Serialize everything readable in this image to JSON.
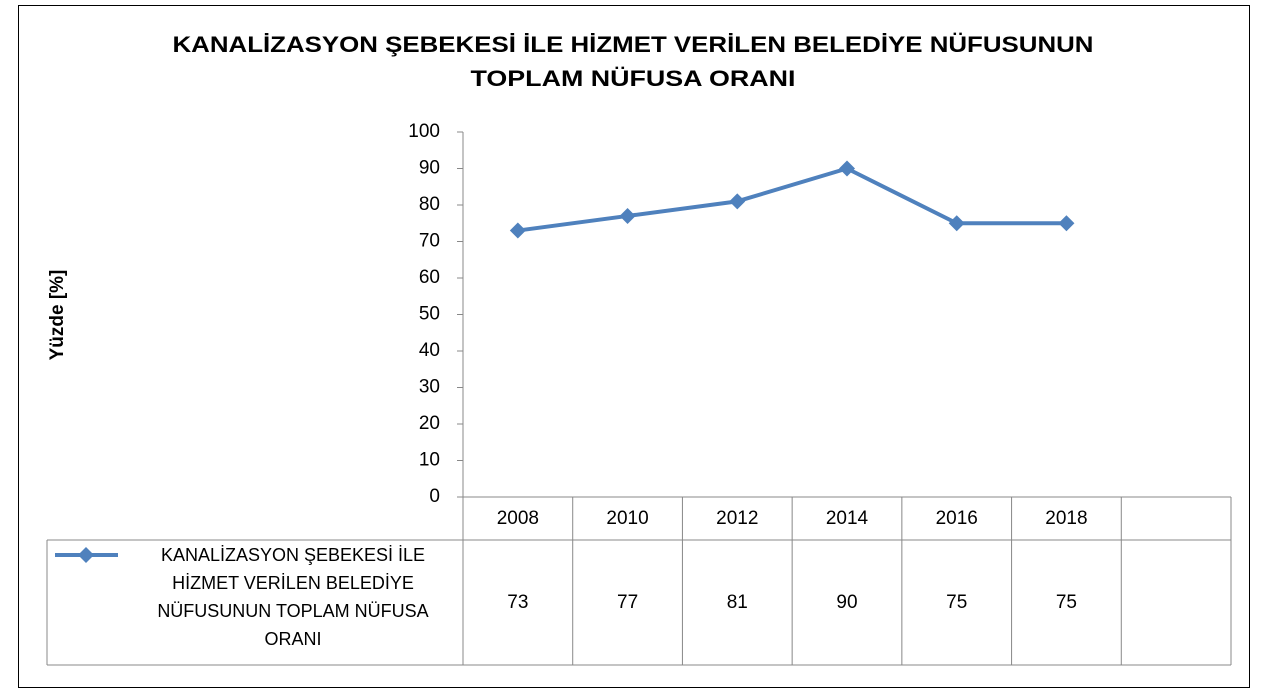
{
  "chart_data": {
    "type": "line",
    "title": [
      "KANALİZASYON ŞEBEKESİ İLE HİZMET VERİLEN BELEDİYE NÜFUSUNUN",
      "TOPLAM NÜFUSA ORANI"
    ],
    "y_label": "Yüzde [%]",
    "categories": [
      "2008",
      "2010",
      "2012",
      "2014",
      "2016",
      "2018",
      null
    ],
    "series": [
      {
        "name": "KANALİZASYON ŞEBEKESİ İLE HİZMET VERİLEN BELEDİYE NÜFUSUNUN TOPLAM NÜFUSA ORANI",
        "color": "#4f81bd",
        "values": [
          73,
          77,
          81,
          90,
          75,
          75,
          null
        ]
      }
    ],
    "ylim": [
      0,
      100
    ],
    "yticks": [
      0,
      10,
      20,
      30,
      40,
      50,
      60,
      70,
      80,
      90,
      100
    ],
    "grid": false,
    "data_table": true
  }
}
